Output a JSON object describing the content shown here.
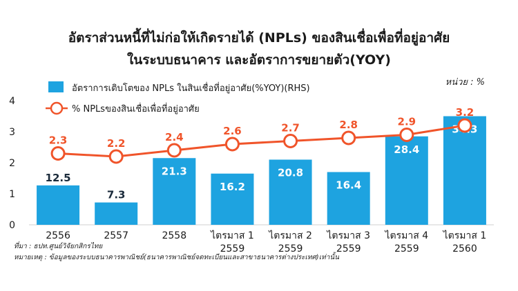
{
  "title_line1": "อัตราส่วนหนี้ที่ไม่ก่อให้เกิดรายได้ (NPLs) ของสินเชื่อเพื่อที่อยู่อาศัย",
  "title_line2": "ในระบบธนาคาร และอัตราการขยายตัว(YOY)",
  "unit": "หน่วย : %",
  "source": "ที่มา : ธปท.ศูนย์วิจัยกสิกรไทย",
  "note": "หมายเหตุ : ข้อมูลของระบบธนาคารพาณิชย์(ธนาคารพาณิชย์จดทะเบียนและสาขาธนาคารต่างประเทศ)เท่านั้น",
  "colors": {
    "bar": "#1ea3e0",
    "line": "#f0542a",
    "marker_fill": "#ffffff",
    "text": "#1a1a1a"
  },
  "chart_data": {
    "type": "bar",
    "categories": [
      [
        "2556"
      ],
      [
        "2557"
      ],
      [
        "2558"
      ],
      [
        "ไตรมาส 1",
        "2559"
      ],
      [
        "ไตรมาส 2",
        "2559"
      ],
      [
        "ไตรมาส 3",
        "2559"
      ],
      [
        "ไตรมาส 4",
        "2559"
      ],
      [
        "ไตรมาส 1",
        "2560"
      ]
    ],
    "ylim": [
      0,
      4
    ],
    "yticks": [
      0,
      1,
      2,
      3,
      4
    ],
    "legend_position": "top-left",
    "series": [
      {
        "name": "อัตราการเติบโตของ NPLs ในสินเชื่อที่อยู่อาศัย(%YOY)(RHS)",
        "type": "bar",
        "axis": "right",
        "values": [
          12.5,
          7.3,
          21.3,
          16.2,
          20.8,
          16.4,
          28.4,
          34.3
        ],
        "plotted_on_left_scale": [
          1.27,
          0.72,
          2.15,
          1.65,
          2.1,
          1.7,
          2.85,
          3.5
        ],
        "labels": [
          "12.5",
          "7.3",
          "21.3",
          "16.2",
          "20.8",
          "16.4",
          "28.4",
          "34.3"
        ]
      },
      {
        "name": "% NPLsของสินเชื่อเพื่อที่อยู่อาศัย",
        "type": "line",
        "axis": "left",
        "values": [
          2.3,
          2.2,
          2.4,
          2.6,
          2.7,
          2.8,
          2.9,
          3.2
        ],
        "labels": [
          "2.3",
          "2.2",
          "2.4",
          "2.6",
          "2.7",
          "2.8",
          "2.9",
          "3.2"
        ]
      }
    ]
  }
}
